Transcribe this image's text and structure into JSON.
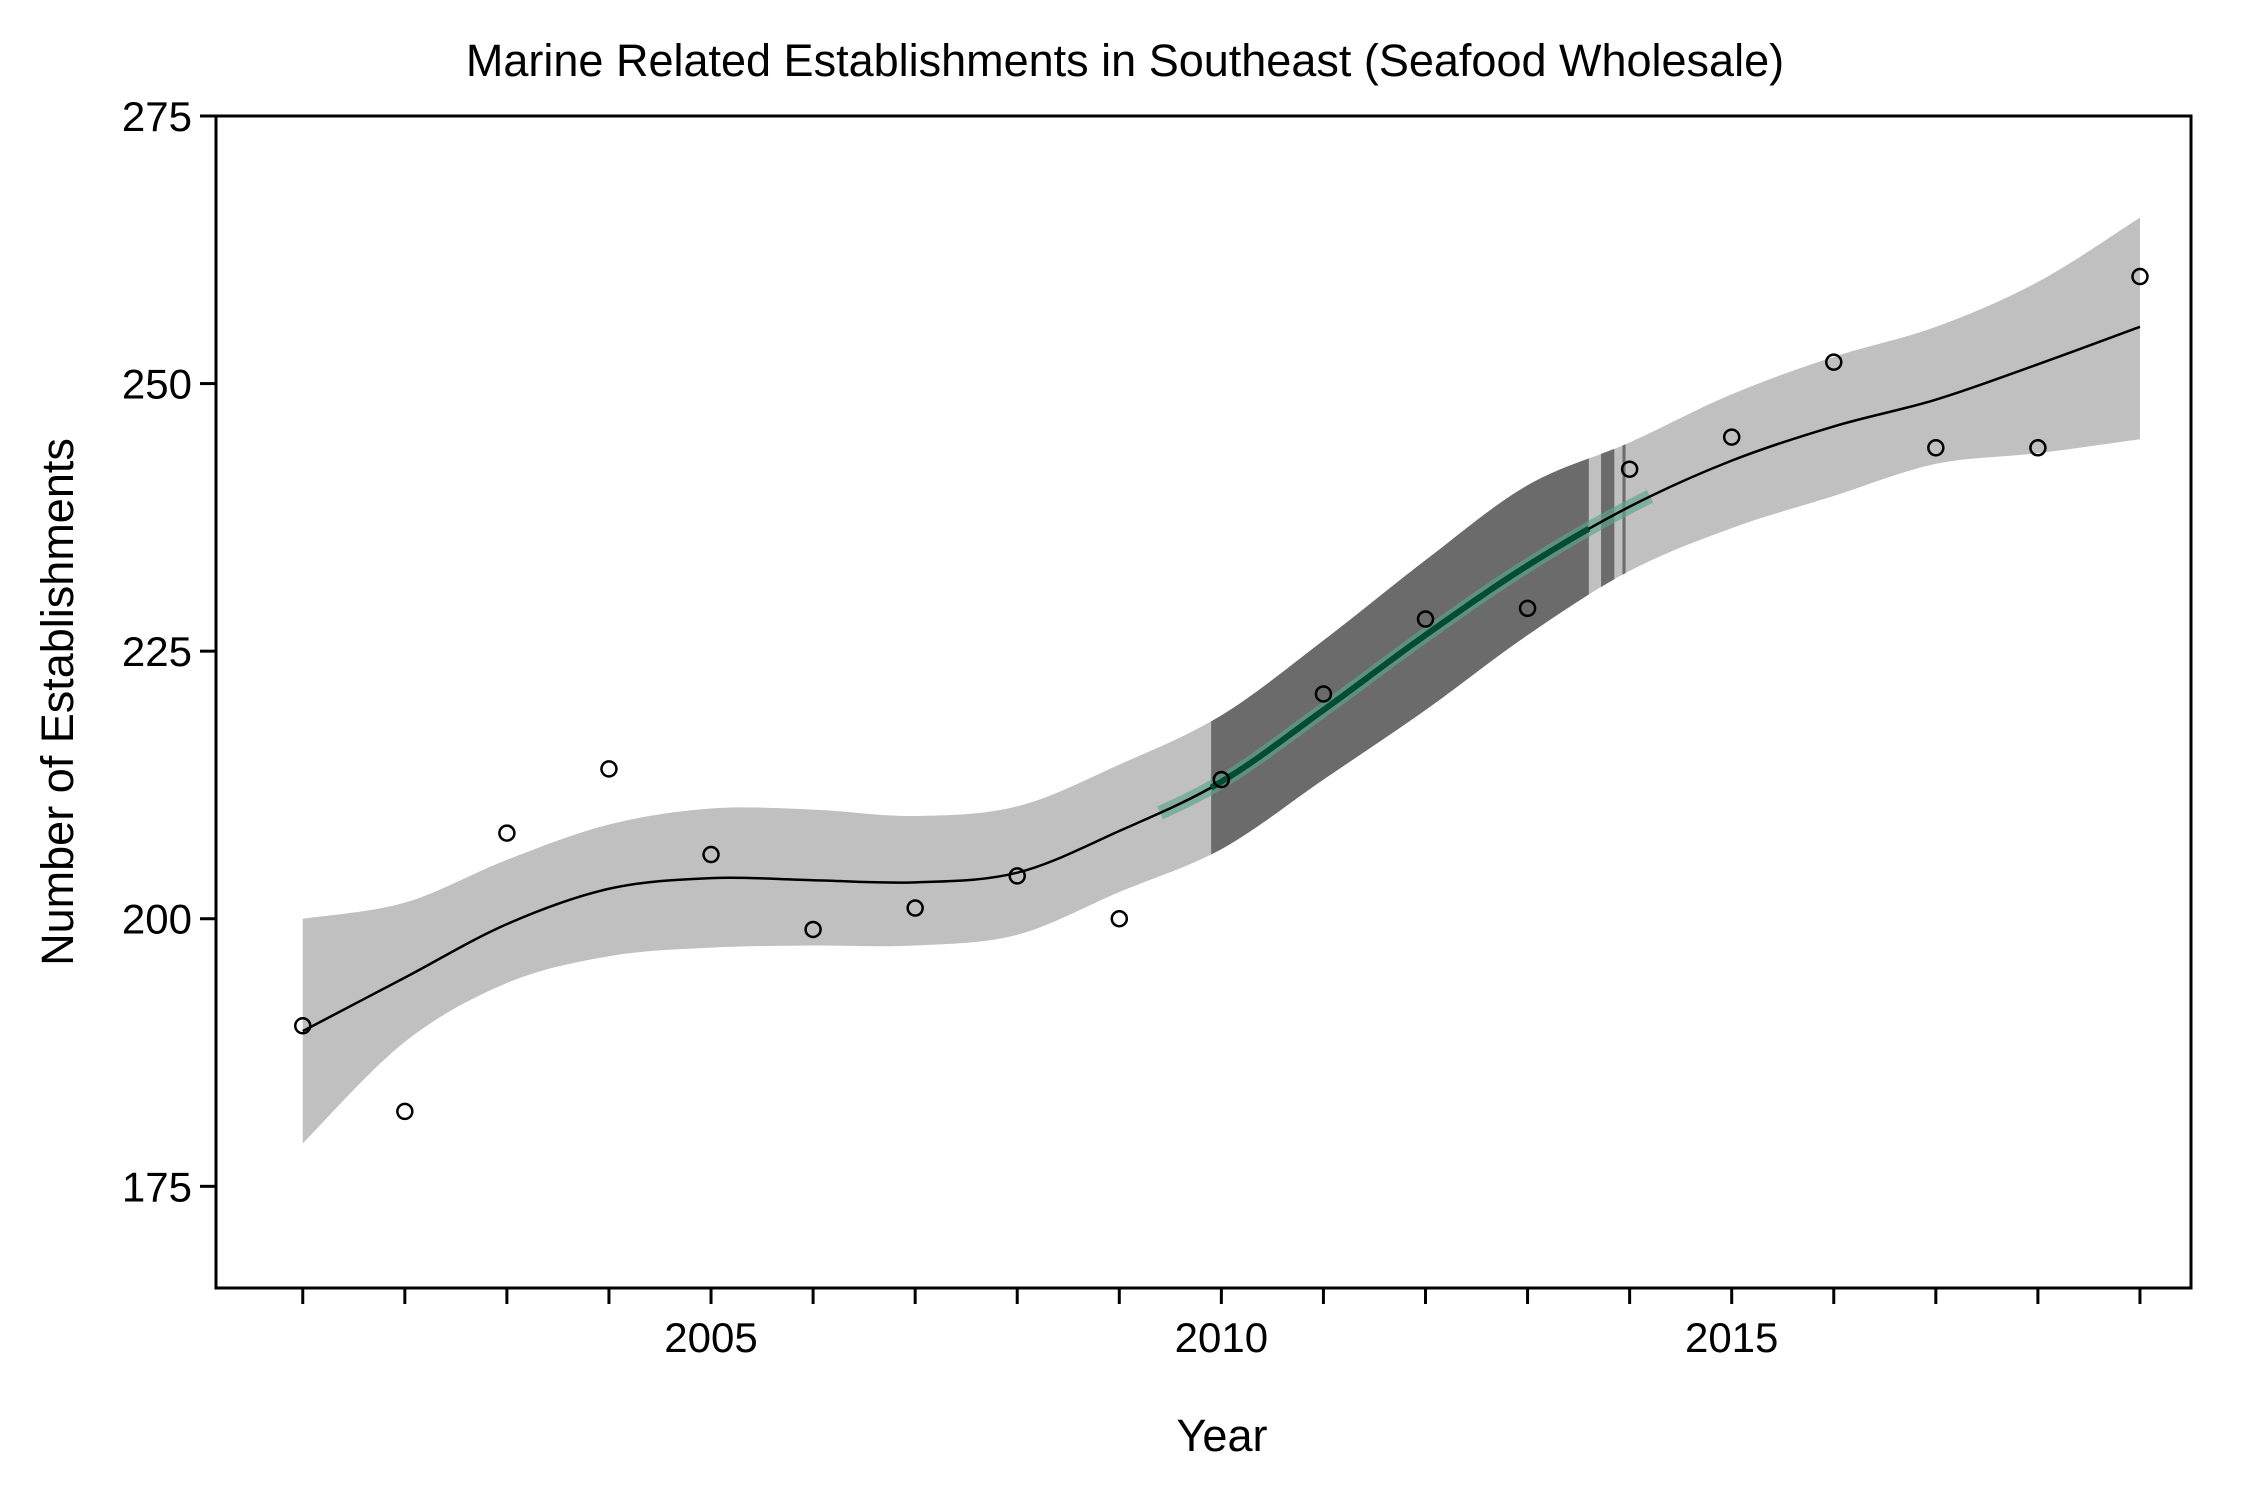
{
  "chart_data": {
    "type": "scatter",
    "title": "Marine Related Establishments in Southeast (Seafood Wholesale)",
    "xlabel": "Year",
    "ylabel": "Number of Establishments",
    "xlim": [
      2000.15,
      2019.5
    ],
    "ylim": [
      165.5,
      275
    ],
    "x_ticks": [
      2001,
      2002,
      2003,
      2004,
      2005,
      2006,
      2007,
      2008,
      2009,
      2010,
      2011,
      2012,
      2013,
      2014,
      2015,
      2016,
      2017,
      2018,
      2019
    ],
    "x_tick_labels": [
      "",
      "",
      "",
      "",
      "2005",
      "",
      "",
      "",
      "",
      "2010",
      "",
      "",
      "",
      "",
      "2015",
      "",
      "",
      "",
      ""
    ],
    "y_ticks": [
      175,
      200,
      225,
      250,
      275
    ],
    "y_tick_labels": [
      "175",
      "200",
      "225",
      "250",
      "275"
    ],
    "grid": false,
    "series": [
      {
        "kind": "points",
        "x": [
          2001,
          2002,
          2003,
          2004,
          2005,
          2006,
          2007,
          2008,
          2009,
          2010,
          2011,
          2012,
          2013,
          2014,
          2015,
          2016,
          2017,
          2018,
          2019
        ],
        "y": [
          190,
          182,
          208,
          214,
          206,
          199,
          201,
          204,
          200,
          213,
          221,
          228,
          229,
          242,
          245,
          252,
          244,
          244,
          260
        ],
        "color": "#000000"
      },
      {
        "kind": "smooth_fit",
        "x": [
          2001,
          2002,
          2003,
          2004,
          2005,
          2006,
          2007,
          2008,
          2009,
          2010,
          2011,
          2012,
          2013,
          2014,
          2015,
          2016,
          2017,
          2018,
          2019
        ],
        "y": [
          189.5,
          194.5,
          199.5,
          202.8,
          203.8,
          203.6,
          203.4,
          204.3,
          208.2,
          212.8,
          219.5,
          226.5,
          233.0,
          238.5,
          242.8,
          246.0,
          248.5,
          251.8,
          255.3
        ],
        "ci_low": [
          179,
          188.5,
          194,
          196.5,
          197.3,
          197.5,
          197.5,
          198.5,
          202.5,
          206.5,
          213,
          219.5,
          226.5,
          232.5,
          236.5,
          239.5,
          242.5,
          243.5,
          244.8
        ],
        "ci_high": [
          200,
          201.5,
          205.5,
          208.8,
          210.3,
          210.2,
          209.6,
          210.5,
          214.4,
          219.0,
          226.0,
          233.5,
          240.5,
          244.5,
          249.0,
          252.5,
          255.3,
          259.5,
          265.5
        ],
        "line_color": "#000000",
        "ci_color": "#c0c0c0"
      }
    ],
    "highlight": {
      "description_color": "#6b6b6b",
      "band_x": [
        2009.9,
        2013.6
      ],
      "extra_bars_x": [
        [
          2013.72,
          2013.85
        ],
        [
          2013.93,
          2013.96
        ]
      ],
      "trend_x": [
        2009.4,
        2014.2
      ],
      "trend_color": "#5aa58a",
      "fit_dark_color": "#004d33"
    }
  }
}
